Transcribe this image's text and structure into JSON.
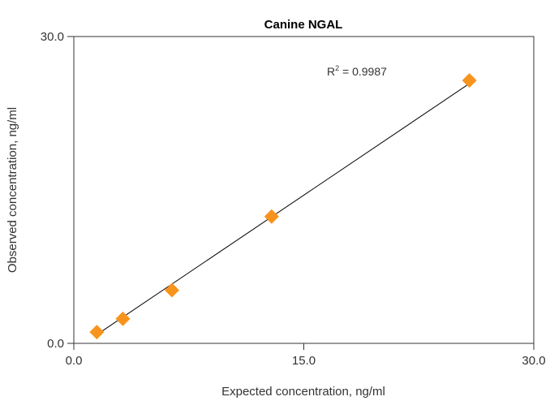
{
  "chart_data": {
    "type": "scatter",
    "title": "Canine NGAL",
    "xlabel": "Expected concentration, ng/ml",
    "ylabel": "Observed concentration, ng/ml",
    "xlim": [
      0,
      30
    ],
    "ylim": [
      0,
      30
    ],
    "x_ticks": [
      "0.0",
      "15.0",
      "30.0"
    ],
    "y_ticks": [
      "0.0",
      "30.0"
    ],
    "grid": false,
    "legend": "none",
    "series": [
      {
        "marker": "diamond",
        "color": "#F7941D",
        "x": [
          1.5,
          3.2,
          6.4,
          12.9,
          25.8
        ],
        "y": [
          1.1,
          2.4,
          5.2,
          12.4,
          25.7
        ]
      }
    ],
    "trendline": {
      "type": "linear",
      "color": "#000000",
      "x": [
        1.5,
        25.8
      ],
      "y": [
        0.85,
        25.4
      ]
    },
    "annotation": {
      "r_label": "R",
      "r_sup": "2",
      "r_value": " = 0.9987"
    }
  }
}
